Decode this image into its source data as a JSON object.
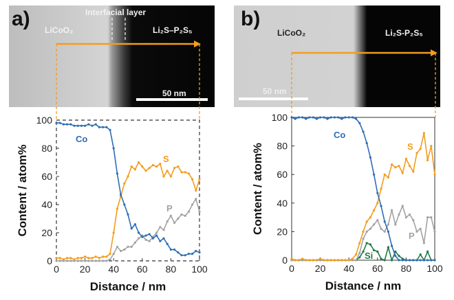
{
  "colors": {
    "Co": "#2e6db4",
    "S": "#f39c1e",
    "P": "#a3a3a3",
    "Si": "#1d7a47",
    "arrow": "#f39c1e"
  },
  "panels": [
    {
      "label": "a)",
      "image": {
        "left_phase": "LiCoO₂",
        "right_phase": "Li₂S–P₂S₅",
        "interface_label": "Interfacial layer",
        "scale_bar": "50 nm"
      }
    },
    {
      "label": "b)",
      "image": {
        "left_phase": "LiCoO₂",
        "right_phase": "Li₂S-P₂S₅",
        "scale_bar": "50 nm"
      }
    }
  ],
  "chart_data": [
    {
      "type": "line",
      "xlabel": "Distance / nm",
      "ylabel": "Content / atom%",
      "xlim": [
        0,
        100
      ],
      "ylim": [
        0,
        100
      ],
      "xticks": [
        "0",
        "20",
        "40",
        "60",
        "80",
        "100"
      ],
      "yticks": [
        "0",
        "20",
        "40",
        "60",
        "80",
        "100"
      ],
      "frame": "dashed",
      "x": [
        0,
        2.5,
        5,
        7.5,
        10,
        12.5,
        15,
        17.5,
        20,
        22.5,
        25,
        27.5,
        30,
        32.5,
        35,
        37.5,
        40,
        42.5,
        45,
        47.5,
        50,
        52.5,
        55,
        57.5,
        60,
        62.5,
        65,
        67.5,
        70,
        72.5,
        75,
        77.5,
        80,
        82.5,
        85,
        87.5,
        90,
        92.5,
        95,
        97.5,
        100
      ],
      "series": [
        {
          "name": "Co",
          "values": [
            98,
            98,
            97,
            97,
            97,
            96,
            96,
            96,
            96,
            97,
            96,
            97,
            95,
            95,
            95,
            93,
            80,
            62,
            47,
            40,
            33,
            23,
            26,
            20,
            17,
            18,
            19,
            16,
            18,
            14,
            16,
            12,
            8,
            8,
            6,
            4,
            4,
            5,
            5,
            7,
            6
          ]
        },
        {
          "name": "S",
          "values": [
            2,
            2,
            1,
            2,
            2,
            1,
            2,
            2,
            3,
            2,
            2,
            3,
            2,
            3,
            3,
            5,
            20,
            37,
            46,
            55,
            60,
            67,
            65,
            70,
            67,
            64,
            66,
            68,
            67,
            69,
            60,
            64,
            60,
            66,
            67,
            63,
            63,
            62,
            58,
            50,
            58
          ]
        },
        {
          "name": "P",
          "values": [
            0,
            0,
            0,
            0,
            0,
            0,
            0,
            0,
            0,
            0,
            0,
            0,
            0,
            0,
            0,
            1,
            5,
            10,
            7,
            8,
            10,
            10,
            13,
            16,
            18,
            15,
            14,
            17,
            20,
            24,
            22,
            28,
            32,
            27,
            30,
            33,
            32,
            35,
            40,
            44,
            35
          ]
        }
      ]
    },
    {
      "type": "line",
      "xlabel": "Distance / nm",
      "ylabel": "Content / atom%",
      "xlim": [
        0,
        100
      ],
      "ylim": [
        0,
        100
      ],
      "xticks": [
        "0",
        "20",
        "40",
        "60",
        "80",
        "100"
      ],
      "yticks": [
        "0",
        "20",
        "40",
        "60",
        "80",
        "100"
      ],
      "frame": "solid",
      "x": [
        0,
        2.5,
        5,
        7.5,
        10,
        12.5,
        15,
        17.5,
        20,
        22.5,
        25,
        27.5,
        30,
        32.5,
        35,
        37.5,
        40,
        42.5,
        45,
        47.5,
        50,
        52.5,
        55,
        57.5,
        60,
        62.5,
        65,
        67.5,
        70,
        72.5,
        75,
        77.5,
        80,
        82.5,
        85,
        87.5,
        90,
        92.5,
        95,
        97.5,
        100
      ],
      "series": [
        {
          "name": "Co",
          "values": [
            100,
            99,
            100,
            100,
            99,
            100,
            100,
            99,
            100,
            100,
            99,
            100,
            100,
            100,
            99,
            100,
            100,
            100,
            99,
            96,
            90,
            82,
            72,
            60,
            47,
            38,
            27,
            20,
            10,
            3,
            0,
            0,
            0,
            0,
            0,
            0,
            0,
            0,
            0,
            0,
            0
          ]
        },
        {
          "name": "S",
          "values": [
            1,
            0,
            0,
            1,
            0,
            0,
            0,
            0,
            1,
            0,
            0,
            0,
            0,
            0,
            0,
            0,
            0,
            1,
            4,
            12,
            20,
            27,
            30,
            35,
            40,
            50,
            60,
            58,
            67,
            65,
            66,
            61,
            71,
            66,
            62,
            75,
            78,
            89,
            70,
            80,
            60
          ]
        },
        {
          "name": "P",
          "values": [
            0,
            0,
            0,
            0,
            0,
            0,
            0,
            0,
            0,
            0,
            0,
            0,
            0,
            0,
            0,
            0,
            0,
            0,
            0,
            5,
            15,
            20,
            22,
            25,
            28,
            22,
            20,
            25,
            35,
            25,
            32,
            38,
            30,
            32,
            28,
            20,
            22,
            12,
            30,
            30,
            20
          ]
        },
        {
          "name": "Si",
          "values": [
            0,
            0,
            0,
            0,
            0,
            0,
            0,
            0,
            0,
            0,
            0,
            0,
            0,
            0,
            0,
            0,
            0,
            0,
            0,
            2,
            6,
            12,
            11,
            7,
            6,
            1,
            0,
            9,
            0,
            6,
            3,
            1,
            0,
            0,
            0,
            0,
            4,
            0,
            6,
            0,
            0
          ]
        }
      ]
    }
  ]
}
